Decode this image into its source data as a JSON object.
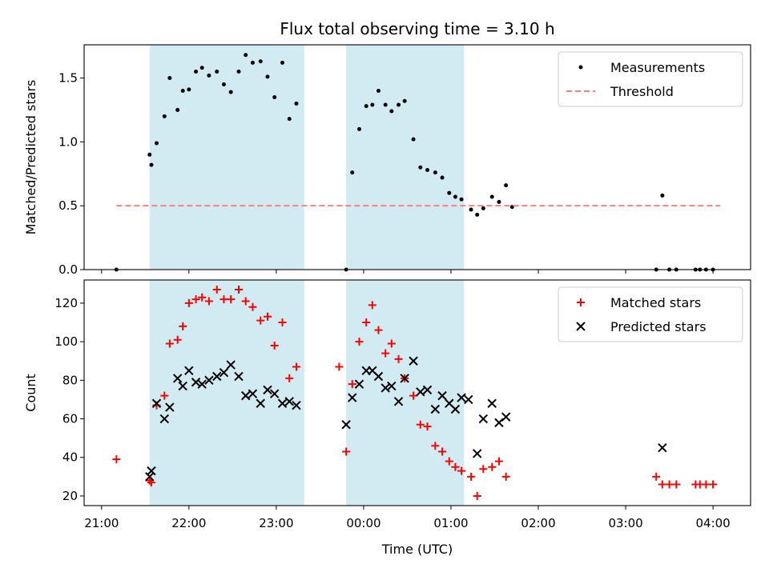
{
  "chart_data": {
    "type": "scatter",
    "title": "Flux total observing time = 3.10 h",
    "xlabel": "Time (UTC)",
    "x_ticks": [
      "21:00",
      "22:00",
      "23:00",
      "00:00",
      "01:00",
      "02:00",
      "03:00",
      "04:00"
    ],
    "x_tick_values": [
      21.0,
      22.0,
      23.0,
      24.0,
      25.0,
      26.0,
      27.0,
      28.0
    ],
    "xlim": [
      20.8,
      28.43
    ],
    "shaded_intervals": [
      [
        21.55,
        23.32
      ],
      [
        23.8,
        25.15
      ]
    ],
    "colors": {
      "shade": "#add8e6",
      "measure": "#000000",
      "threshold": "#ff7f7f",
      "matched": "#ff0000",
      "predicted": "#000000"
    },
    "panels": [
      {
        "ylabel": "Matched/Predicted stars",
        "ylim": [
          0,
          1.76
        ],
        "y_ticks": [
          "0.0",
          "0.5",
          "1.0",
          "1.5"
        ],
        "y_tick_values": [
          0,
          0.5,
          1.0,
          1.5
        ],
        "legend_position": "top-right",
        "series": [
          {
            "name": "Measurements",
            "marker": "dot",
            "points": [
              [
                21.17,
                0.0
              ],
              [
                21.55,
                0.9
              ],
              [
                21.57,
                0.82
              ],
              [
                21.63,
                0.99
              ],
              [
                21.72,
                1.2
              ],
              [
                21.78,
                1.5
              ],
              [
                21.87,
                1.25
              ],
              [
                21.93,
                1.4
              ],
              [
                22.0,
                1.41
              ],
              [
                22.08,
                1.55
              ],
              [
                22.15,
                1.58
              ],
              [
                22.23,
                1.52
              ],
              [
                22.32,
                1.55
              ],
              [
                22.4,
                1.45
              ],
              [
                22.48,
                1.39
              ],
              [
                22.57,
                1.55
              ],
              [
                22.65,
                1.68
              ],
              [
                22.73,
                1.62
              ],
              [
                22.82,
                1.63
              ],
              [
                22.9,
                1.51
              ],
              [
                22.98,
                1.35
              ],
              [
                23.07,
                1.62
              ],
              [
                23.15,
                1.18
              ],
              [
                23.23,
                1.3
              ],
              [
                23.8,
                0.0
              ],
              [
                23.87,
                0.76
              ],
              [
                23.95,
                1.1
              ],
              [
                24.03,
                1.28
              ],
              [
                24.1,
                1.29
              ],
              [
                24.17,
                1.4
              ],
              [
                24.25,
                1.29
              ],
              [
                24.32,
                1.24
              ],
              [
                24.4,
                1.29
              ],
              [
                24.47,
                1.32
              ],
              [
                24.57,
                1.02
              ],
              [
                24.65,
                0.8
              ],
              [
                24.73,
                0.78
              ],
              [
                24.82,
                0.76
              ],
              [
                24.9,
                0.72
              ],
              [
                24.98,
                0.6
              ],
              [
                25.05,
                0.57
              ],
              [
                25.12,
                0.55
              ],
              [
                25.23,
                0.47
              ],
              [
                25.3,
                0.43
              ],
              [
                25.37,
                0.48
              ],
              [
                25.47,
                0.57
              ],
              [
                25.55,
                0.53
              ],
              [
                25.63,
                0.66
              ],
              [
                25.7,
                0.49
              ],
              [
                27.35,
                0.0
              ],
              [
                27.42,
                0.58
              ],
              [
                27.5,
                0.0
              ],
              [
                27.58,
                0.0
              ],
              [
                27.8,
                0.0
              ],
              [
                27.85,
                0.0
              ],
              [
                27.92,
                0.0
              ],
              [
                28.0,
                0.0
              ]
            ]
          },
          {
            "name": "Threshold",
            "marker": "dashed-line",
            "points": [
              [
                21.17,
                0.5
              ],
              [
                28.08,
                0.5
              ]
            ]
          }
        ]
      },
      {
        "ylabel": "Count",
        "ylim": [
          15,
          132
        ],
        "y_ticks": [
          "20",
          "40",
          "60",
          "80",
          "100",
          "120"
        ],
        "y_tick_values": [
          20,
          40,
          60,
          80,
          100,
          120
        ],
        "legend_position": "top-right",
        "series": [
          {
            "name": "Matched stars",
            "marker": "plus",
            "points": [
              [
                21.17,
                39
              ],
              [
                21.55,
                28
              ],
              [
                21.57,
                27
              ],
              [
                21.63,
                67
              ],
              [
                21.72,
                72
              ],
              [
                21.78,
                99
              ],
              [
                21.87,
                101
              ],
              [
                21.93,
                108
              ],
              [
                22.0,
                120
              ],
              [
                22.08,
                122
              ],
              [
                22.15,
                123
              ],
              [
                22.23,
                121
              ],
              [
                22.32,
                127
              ],
              [
                22.4,
                122
              ],
              [
                22.48,
                122
              ],
              [
                22.57,
                127
              ],
              [
                22.65,
                121
              ],
              [
                22.73,
                118
              ],
              [
                22.82,
                111
              ],
              [
                22.9,
                113
              ],
              [
                22.98,
                98
              ],
              [
                23.07,
                110
              ],
              [
                23.15,
                81
              ],
              [
                23.23,
                87
              ],
              [
                23.72,
                87
              ],
              [
                23.8,
                43
              ],
              [
                23.87,
                78
              ],
              [
                23.95,
                100
              ],
              [
                24.03,
                110
              ],
              [
                24.1,
                119
              ],
              [
                24.17,
                106
              ],
              [
                24.25,
                94
              ],
              [
                24.32,
                99
              ],
              [
                24.4,
                91
              ],
              [
                24.47,
                81
              ],
              [
                24.57,
                72
              ],
              [
                24.65,
                57
              ],
              [
                24.73,
                56
              ],
              [
                24.82,
                46
              ],
              [
                24.9,
                43
              ],
              [
                24.98,
                38
              ],
              [
                25.05,
                35
              ],
              [
                25.12,
                33
              ],
              [
                25.23,
                30
              ],
              [
                25.3,
                20
              ],
              [
                25.37,
                34
              ],
              [
                25.47,
                35
              ],
              [
                25.55,
                38
              ],
              [
                25.63,
                30
              ],
              [
                27.35,
                30
              ],
              [
                27.42,
                26
              ],
              [
                27.5,
                26
              ],
              [
                27.58,
                26
              ],
              [
                27.8,
                26
              ],
              [
                27.85,
                26
              ],
              [
                27.92,
                26
              ],
              [
                28.0,
                26
              ]
            ]
          },
          {
            "name": "Predicted stars",
            "marker": "x",
            "points": [
              [
                21.55,
                30
              ],
              [
                21.57,
                33
              ],
              [
                21.63,
                68
              ],
              [
                21.72,
                60
              ],
              [
                21.78,
                66
              ],
              [
                21.87,
                81
              ],
              [
                21.93,
                77
              ],
              [
                22.0,
                85
              ],
              [
                22.08,
                79
              ],
              [
                22.15,
                78
              ],
              [
                22.23,
                80
              ],
              [
                22.32,
                82
              ],
              [
                22.4,
                84
              ],
              [
                22.48,
                88
              ],
              [
                22.57,
                82
              ],
              [
                22.65,
                72
              ],
              [
                22.73,
                73
              ],
              [
                22.82,
                68
              ],
              [
                22.9,
                75
              ],
              [
                22.98,
                73
              ],
              [
                23.07,
                68
              ],
              [
                23.15,
                69
              ],
              [
                23.23,
                67
              ],
              [
                23.8,
                57
              ],
              [
                23.87,
                71
              ],
              [
                23.95,
                78
              ],
              [
                24.03,
                85
              ],
              [
                24.1,
                85
              ],
              [
                24.17,
                82
              ],
              [
                24.25,
                76
              ],
              [
                24.32,
                77
              ],
              [
                24.4,
                69
              ],
              [
                24.47,
                81
              ],
              [
                24.57,
                90
              ],
              [
                24.65,
                74
              ],
              [
                24.73,
                75
              ],
              [
                24.82,
                65
              ],
              [
                24.9,
                72
              ],
              [
                24.98,
                68
              ],
              [
                25.05,
                65
              ],
              [
                25.12,
                71
              ],
              [
                25.2,
                70
              ],
              [
                25.3,
                42
              ],
              [
                25.37,
                60
              ],
              [
                25.47,
                68
              ],
              [
                25.55,
                58
              ],
              [
                25.63,
                61
              ],
              [
                27.42,
                45
              ]
            ]
          }
        ]
      }
    ]
  }
}
